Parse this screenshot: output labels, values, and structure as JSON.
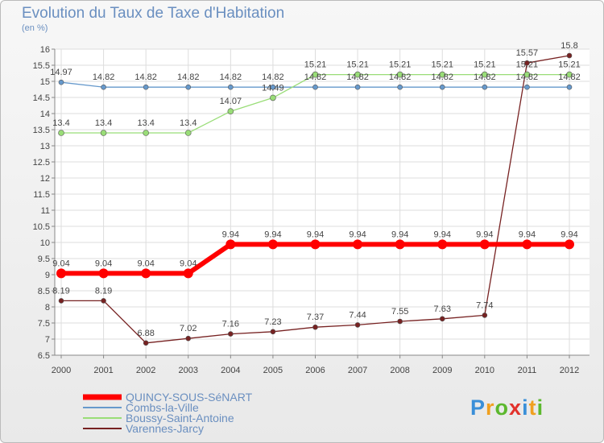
{
  "chart_data": {
    "type": "line",
    "title": "Evolution du Taux de Taxe d'Habitation",
    "ylabel": "(en %)",
    "xlabel": "",
    "x": [
      "2000",
      "2001",
      "2002",
      "2003",
      "2004",
      "2005",
      "2006",
      "2007",
      "2008",
      "2009",
      "2010",
      "2011",
      "2012"
    ],
    "ylim": [
      6.5,
      16
    ],
    "yticks": [
      6.5,
      7,
      7.5,
      8,
      8.5,
      9,
      9.5,
      10,
      10.5,
      11,
      11.5,
      12,
      12.5,
      13,
      13.5,
      14,
      14.5,
      15,
      15.5,
      16
    ],
    "grid": true,
    "legend": "bottom-left",
    "series": [
      {
        "name": "QUINCY-SOUS-SéNART",
        "color": "#ff0000",
        "values": [
          9.04,
          9.04,
          9.04,
          9.04,
          9.94,
          9.94,
          9.94,
          9.94,
          9.94,
          9.94,
          9.94,
          9.94,
          9.94
        ],
        "labels": [
          "9.04",
          "9.04",
          "9.04",
          "9.04",
          "9.94",
          "9.94",
          "9.94",
          "9.94",
          "9.94",
          "9.94",
          "9.94",
          "9.94",
          "9.94"
        ]
      },
      {
        "name": "Combs-la-Ville",
        "color": "#6699cc",
        "values": [
          14.97,
          14.82,
          14.82,
          14.82,
          14.82,
          14.82,
          14.82,
          14.82,
          14.82,
          14.82,
          14.82,
          14.82,
          14.82
        ],
        "labels": [
          "14.97",
          "14.82",
          "14.82",
          "14.82",
          "14.82",
          "14.82",
          "14.82",
          "14.82",
          "14.82",
          "14.82",
          "14.82",
          "14.82",
          "14.82"
        ]
      },
      {
        "name": "Boussy-Saint-Antoine",
        "color": "#99dd77",
        "values": [
          13.4,
          13.4,
          13.4,
          13.4,
          14.07,
          14.49,
          15.21,
          15.21,
          15.21,
          15.21,
          15.21,
          15.21,
          15.21
        ],
        "labels": [
          "13.4",
          "13.4",
          "13.4",
          "13.4",
          "14.07",
          "14.49",
          "15.21",
          "15.21",
          "15.21",
          "15.21",
          "15.21",
          "15.21",
          "15.21"
        ]
      },
      {
        "name": "Varennes-Jarcy",
        "color": "#772222",
        "values": [
          8.19,
          8.19,
          6.88,
          7.02,
          7.16,
          7.23,
          7.37,
          7.44,
          7.55,
          7.63,
          7.74,
          15.57,
          15.8
        ],
        "labels": [
          "8.19",
          "8.19",
          "6.88",
          "7.02",
          "7.16",
          "7.23",
          "7.37",
          "7.44",
          "7.55",
          "7.63",
          "7.74",
          "15.57",
          "15.8"
        ]
      }
    ]
  },
  "brand": {
    "letters": [
      "P",
      "r",
      "o",
      "x",
      "i",
      "t",
      "i"
    ],
    "colors": [
      "#3a8fd8",
      "#f0a020",
      "#5cb82e",
      "#e2322c",
      "#3a8fd8",
      "#f0a020",
      "#5cb82e"
    ]
  }
}
